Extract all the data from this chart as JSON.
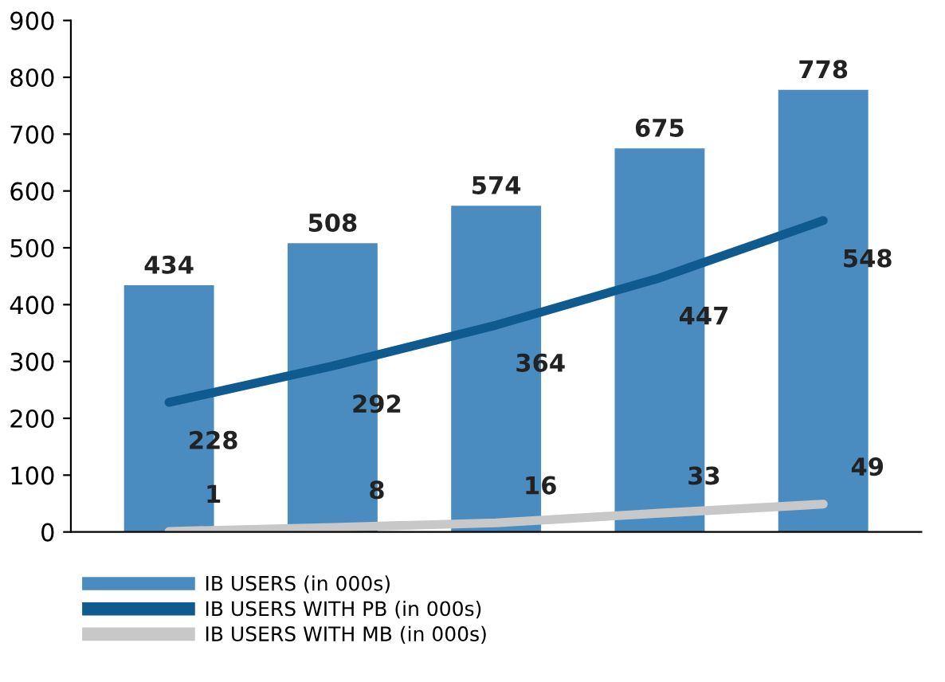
{
  "chart_data": {
    "type": "bar",
    "categories": [
      null,
      null,
      null,
      null,
      null
    ],
    "series": [
      {
        "name": "IB USERS (in 000s)",
        "color": "#4a8cbf",
        "values": [
          434,
          508,
          574,
          675,
          778
        ]
      },
      {
        "name": "IB USERS WITH PB (in 000s)",
        "type": "line",
        "color": "#0f5a8e",
        "values": [
          228,
          292,
          364,
          447,
          548
        ]
      },
      {
        "name": "IB USERS WITH MB (in 000s)",
        "type": "line",
        "color": "#c8c8c8",
        "values": [
          1,
          8,
          16,
          33,
          49
        ]
      }
    ],
    "ylim": [
      0,
      900
    ],
    "yticks": [
      0,
      100,
      200,
      300,
      400,
      500,
      600,
      700,
      800,
      900
    ],
    "data_labels": true,
    "grid": false,
    "legend": "bottom left",
    "marker": "none",
    "line_style": "solid"
  }
}
